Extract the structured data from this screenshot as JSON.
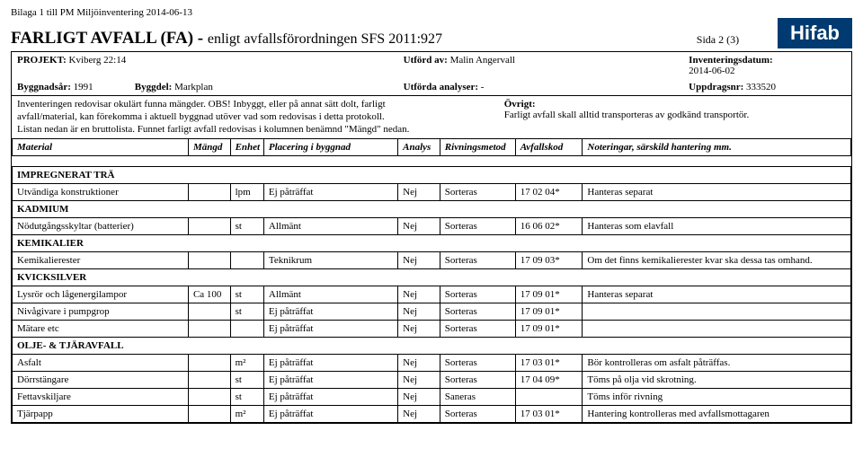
{
  "topMeta": "Bilaga 1 till PM Miljöinventering 2014-06-13",
  "mainTitle": "FARLIGT AVFALL (FA) - ",
  "mainTitleSub": "enligt avfallsförordningen SFS 2011:927",
  "sida": "Sida 2 (3)",
  "logo": "Hifab",
  "hdr": {
    "projektLabel": "PROJEKT: ",
    "projektVal": "Kviberg 22:14",
    "utfordLabel": "Utförd av: ",
    "utfordVal": "Malin Angervall",
    "invDatumLabel": "Inventeringsdatum:",
    "invDatumVal": "2014-06-02",
    "byggnadsarLabel": "Byggnadsår: ",
    "byggnadsarVal": "1991",
    "byggdelLabel": "Byggdel: ",
    "byggdelVal": "Markplan",
    "utfordaLabel": "Utförda analyser: ",
    "utfordaVal": "-",
    "uppdragLabel": "Uppdragsnr: ",
    "uppdragVal": "333520"
  },
  "note": {
    "left1": "Inventeringen redovisar okulärt funna mängder. OBS! Inbyggt, eller på annat sätt dolt, farligt",
    "left2": "avfall/material, kan förekomma i aktuell byggnad utöver vad som redovisas i detta protokoll.",
    "left3": "Listan nedan är en bruttolista. Funnet farligt avfall redovisas i kolumnen benämnd \"Mängd\" nedan.",
    "rightHead": "Övrigt:",
    "right1": "Farligt avfall skall alltid transporteras av godkänd transportör."
  },
  "cols": {
    "c1": "Material",
    "c2": "Mängd",
    "c3": "Enhet",
    "c4": "Placering i byggnad",
    "c5": "Analys",
    "c6": "Rivningsmetod",
    "c7": "Avfallskod",
    "c8": "Noteringar, särskild hantering mm."
  },
  "sections": [
    {
      "title": "IMPREGNERAT TRÄ",
      "rows": [
        {
          "m": "Utvändiga konstruktioner",
          "mg": "",
          "e": "lpm",
          "p": "Ej påträffat",
          "a": "Nej",
          "r": "Sorteras",
          "k": "17 02 04*",
          "n": "Hanteras separat"
        }
      ]
    },
    {
      "title": "KADMIUM",
      "rows": [
        {
          "m": "Nödutgångsskyltar (batterier)",
          "mg": "",
          "e": "st",
          "p": "Allmänt",
          "a": "Nej",
          "r": "Sorteras",
          "k": "16 06 02*",
          "n": "Hanteras som elavfall"
        }
      ]
    },
    {
      "title": "KEMIKALIER",
      "rows": [
        {
          "m": "Kemikalierester",
          "mg": "",
          "e": "",
          "p": "Teknikrum",
          "a": "Nej",
          "r": "Sorteras",
          "k": "17 09 03*",
          "n": "Om det finns kemikalierester kvar ska dessa tas omhand."
        }
      ]
    },
    {
      "title": "KVICKSILVER",
      "rows": [
        {
          "m": "Lysrör och lågenergilampor",
          "mg": "Ca 100",
          "e": "st",
          "p": "Allmänt",
          "a": "Nej",
          "r": "Sorteras",
          "k": "17 09 01*",
          "n": "Hanteras separat"
        },
        {
          "m": "Nivågivare i pumpgrop",
          "mg": "",
          "e": "st",
          "p": "Ej påträffat",
          "a": "Nej",
          "r": "Sorteras",
          "k": "17 09 01*",
          "n": ""
        },
        {
          "m": "Mätare etc",
          "mg": "",
          "e": "",
          "p": "Ej påträffat",
          "a": "Nej",
          "r": "Sorteras",
          "k": "17 09 01*",
          "n": ""
        }
      ]
    },
    {
      "title": "OLJE- & TJÄRAVFALL",
      "rows": [
        {
          "m": "Asfalt",
          "mg": "",
          "e": "m²",
          "p": "Ej påträffat",
          "a": "Nej",
          "r": "Sorteras",
          "k": "17 03 01*",
          "n": "Bör kontrolleras om asfalt påträffas."
        },
        {
          "m": "Dörrstängare",
          "mg": "",
          "e": "st",
          "p": "Ej påträffat",
          "a": "Nej",
          "r": "Sorteras",
          "k": "17 04 09*",
          "n": "Töms på olja vid skrotning."
        },
        {
          "m": "Fettavskiljare",
          "mg": "",
          "e": "st",
          "p": "Ej påträffat",
          "a": "Nej",
          "r": "Saneras",
          "k": "",
          "n": "Töms inför rivning"
        },
        {
          "m": "Tjärpapp",
          "mg": "",
          "e": "m²",
          "p": "Ej påträffat",
          "a": "Nej",
          "r": "Sorteras",
          "k": "17 03 01*",
          "n": "Hantering kontrolleras med avfallsmottagaren"
        }
      ]
    }
  ]
}
